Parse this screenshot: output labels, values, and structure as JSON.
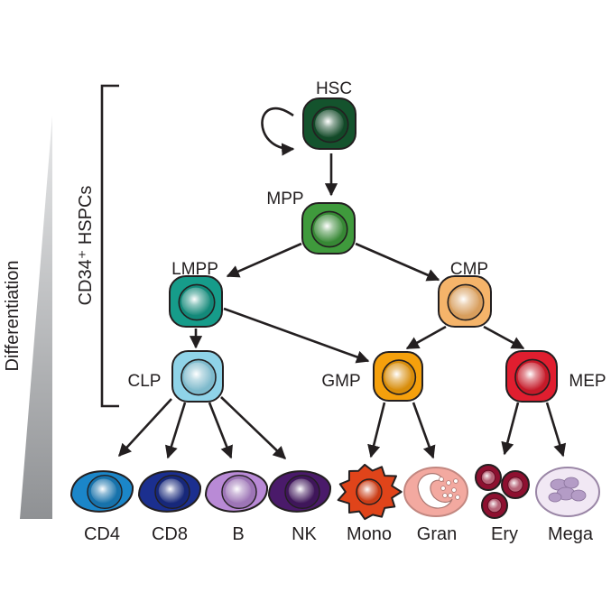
{
  "bracket_label": "CD34⁺ HSPCs",
  "gradient_label": "Differentiation",
  "cells": {
    "hsc": {
      "label": "HSC",
      "color": "#14532d"
    },
    "mpp": {
      "label": "MPP",
      "color": "#3f9a3c"
    },
    "lmpp": {
      "label": "LMPP",
      "color": "#169c8a"
    },
    "cmp": {
      "label": "CMP",
      "color": "#f5b46a"
    },
    "clp": {
      "label": "CLP",
      "color": "#8fd3e8"
    },
    "gmp": {
      "label": "GMP",
      "color": "#f5a00c"
    },
    "mep": {
      "label": "MEP",
      "color": "#e01e2f"
    },
    "cd4": {
      "label": "CD4",
      "color": "#1b86c9"
    },
    "cd8": {
      "label": "CD8",
      "color": "#1b2f8f"
    },
    "b": {
      "label": "B",
      "color": "#b98ad6"
    },
    "nk": {
      "label": "NK",
      "color": "#4a1a6a"
    },
    "mono": {
      "label": "Mono",
      "color": "#e0441a"
    },
    "gran": {
      "label": "Gran",
      "color": "#f3a9a0"
    },
    "ery": {
      "label": "Ery",
      "color": "#8e1030"
    },
    "mega": {
      "label": "Mega",
      "color": "#dcc8e6"
    }
  },
  "edges": [
    [
      "hsc",
      "hsc"
    ],
    [
      "hsc",
      "mpp"
    ],
    [
      "mpp",
      "lmpp"
    ],
    [
      "mpp",
      "cmp"
    ],
    [
      "lmpp",
      "clp"
    ],
    [
      "lmpp",
      "gmp"
    ],
    [
      "cmp",
      "gmp"
    ],
    [
      "cmp",
      "mep"
    ],
    [
      "clp",
      "cd4"
    ],
    [
      "clp",
      "cd8"
    ],
    [
      "clp",
      "b"
    ],
    [
      "clp",
      "nk"
    ],
    [
      "gmp",
      "mono"
    ],
    [
      "gmp",
      "gran"
    ],
    [
      "mep",
      "ery"
    ],
    [
      "mep",
      "mega"
    ]
  ]
}
